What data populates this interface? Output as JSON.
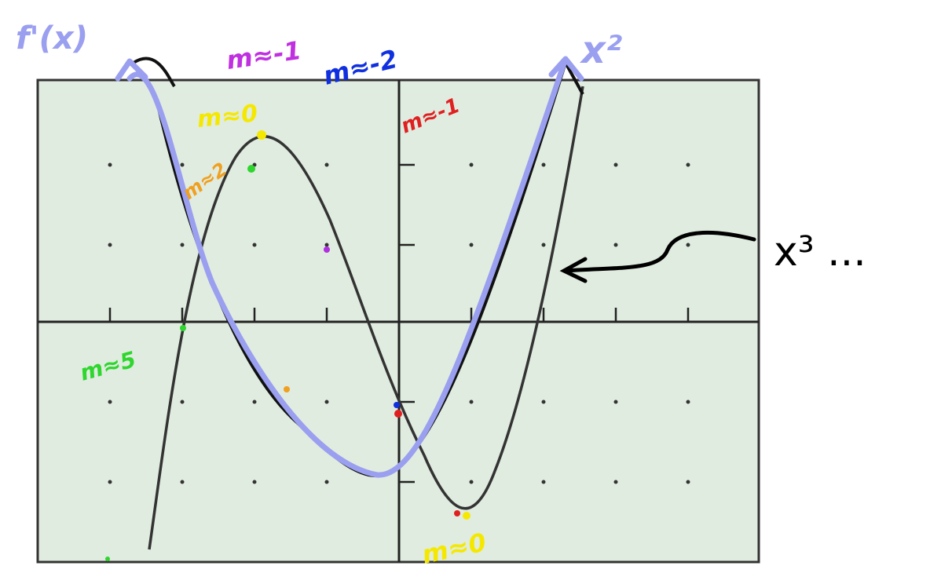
{
  "labels": {
    "derivative": "f'(x)",
    "square": "x²",
    "cube": "x³ ..."
  },
  "slopes": {
    "purple": "m≈-1",
    "blue": "m≈-2",
    "yellow_top": "m≈0",
    "red": "m≈-1",
    "orange": "m≈2",
    "green": "m≈5",
    "yellow_bottom": "m≈0"
  }
}
